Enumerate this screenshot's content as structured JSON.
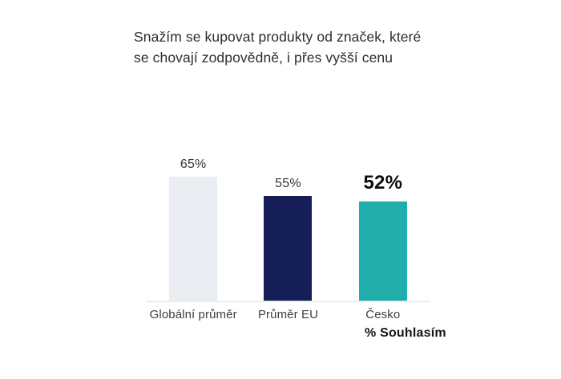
{
  "title": {
    "text": "Snažím se kupovat produkty od značek, které\nse chovají zodpovědně, i přes vyšší cenu"
  },
  "footnote": {
    "label": "% Souhlasím"
  },
  "chart_data": {
    "type": "bar",
    "title": "Snažím se kupovat produkty od značek, které se chovají zodpovědně, i přes vyšší cenu",
    "categories": [
      "Globální průměr",
      "Průměr EU",
      "Česko"
    ],
    "values": [
      65,
      55,
      52
    ],
    "value_labels": [
      "65%",
      "55%",
      "52%"
    ],
    "bar_colors": [
      "#e9ecf1",
      "#151e57",
      "#21adaa"
    ],
    "emphasized": [
      false,
      false,
      true
    ],
    "xlabel": "",
    "ylabel": "",
    "ylim": [
      0,
      100
    ],
    "grid": false,
    "legend": "none",
    "footnote": "% Souhlasím",
    "axis_line_color": "#ececec"
  }
}
